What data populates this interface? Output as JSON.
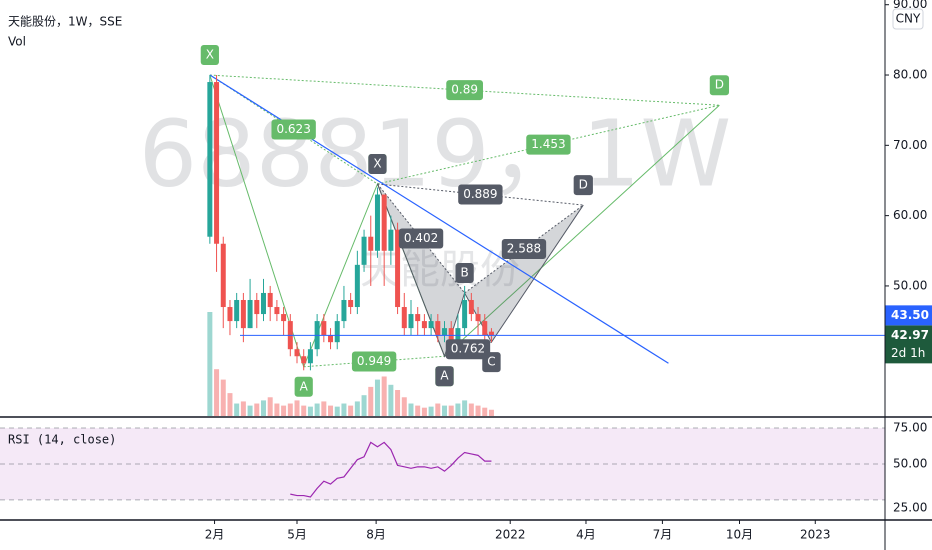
{
  "chart_data": {
    "type": "candlestick",
    "title": "天能股份，1W，SSE",
    "volume_label": "Vol",
    "watermark": "688819，1W",
    "watermark_sub": "天能股份",
    "currency": "CNY",
    "x": [
      0,
      1,
      2,
      3,
      4,
      5,
      6,
      7,
      8,
      9,
      10,
      11,
      12,
      13,
      14,
      15,
      16,
      17,
      18,
      19,
      20,
      21,
      22,
      23,
      24,
      25,
      26,
      27,
      28,
      29,
      30,
      31,
      32,
      33,
      34,
      35,
      36,
      37,
      38,
      39,
      40,
      41,
      42
    ],
    "open": [
      57,
      79,
      56,
      47,
      45,
      48,
      44,
      48,
      46,
      49,
      47,
      46,
      45,
      41,
      40,
      39,
      41,
      45,
      43,
      42,
      45,
      48,
      47,
      53,
      57,
      55,
      63,
      55,
      58,
      47,
      44,
      46,
      45,
      44,
      45,
      43,
      44,
      41,
      44,
      48,
      46,
      45,
      43.5
    ],
    "high": [
      80,
      80,
      57,
      48,
      49,
      49,
      51,
      49,
      51,
      50,
      48,
      47,
      46,
      42,
      41,
      42,
      46,
      46,
      44,
      46,
      50,
      49,
      55,
      58,
      60,
      64,
      63,
      60,
      59,
      49,
      48,
      47,
      46,
      46,
      46,
      45,
      45,
      46,
      50,
      49,
      47,
      46,
      44
    ],
    "low": [
      56,
      52,
      44,
      43,
      44,
      42,
      44,
      44,
      45,
      45,
      45,
      43,
      40,
      39,
      38,
      38,
      40,
      42,
      41,
      41,
      44,
      46,
      46,
      52,
      50,
      54,
      50,
      53,
      46,
      43,
      43,
      43,
      43,
      43,
      42,
      42,
      40,
      40,
      43,
      45,
      43,
      42,
      42
    ],
    "close": [
      79,
      56,
      47,
      45,
      48,
      44,
      48,
      46,
      49,
      47,
      46,
      45,
      41,
      40,
      39,
      41,
      45,
      43,
      42,
      45,
      48,
      47,
      53,
      57,
      55,
      63,
      55,
      58,
      47,
      44,
      46,
      45,
      44,
      45,
      43,
      44,
      41,
      44,
      48,
      46,
      45,
      43,
      42.97
    ],
    "volume": [
      100,
      45,
      35,
      22,
      12,
      14,
      10,
      12,
      15,
      18,
      12,
      10,
      12,
      15,
      10,
      9,
      12,
      14,
      10,
      9,
      12,
      10,
      14,
      20,
      28,
      35,
      38,
      30,
      25,
      18,
      12,
      10,
      8,
      9,
      12,
      10,
      10,
      12,
      15,
      12,
      10,
      8,
      6
    ],
    "volume_ylim": [
      0,
      100
    ],
    "up_color": "#26a69a",
    "down_color": "#ef5350",
    "xlim": [
      -31.3,
      100.7
    ],
    "xticks": [
      {
        "value": 0.7,
        "label": "2月"
      },
      {
        "value": 13,
        "label": "5月"
      },
      {
        "value": 24.8,
        "label": "8月"
      },
      {
        "value": 44.8,
        "label": "2022"
      },
      {
        "value": 56.1,
        "label": "4月"
      },
      {
        "value": 67.5,
        "label": "7月"
      },
      {
        "value": 79,
        "label": "10月"
      },
      {
        "value": 90.3,
        "label": "2023"
      }
    ],
    "ylim": [
      31.5,
      90.67
    ],
    "yticks": [
      {
        "value": 90,
        "label": "90.00"
      },
      {
        "value": 80,
        "label": "80.00"
      },
      {
        "value": 70,
        "label": "70.00"
      },
      {
        "value": 60,
        "label": "60.00"
      },
      {
        "value": 50,
        "label": "50.00"
      }
    ],
    "last_price": {
      "value": 42.97,
      "label": "42.97"
    },
    "countdown": "2d 1h",
    "marker_price": {
      "value": 43.5,
      "label": "43.50"
    },
    "trendline": {
      "x": [
        0,
        68.4
      ],
      "y": [
        80,
        39
      ],
      "color": "#2962ff"
    },
    "patterns": [
      {
        "color": "#66bb6a",
        "fill": false,
        "points": [
          {
            "label": "X",
            "x": 0,
            "y": 80
          },
          {
            "label": "A",
            "x": 14,
            "y": 38.5
          },
          {
            "label": "B",
            "x": 25,
            "y": 64.5
          },
          {
            "label": "C",
            "x": 35,
            "y": 40
          },
          {
            "label": "D",
            "x": 76,
            "y": 75.7
          }
        ],
        "ratios": [
          0.623,
          0.949,
          1.453,
          0.89
        ]
      },
      {
        "color": "#555a66",
        "fill": true,
        "points": [
          {
            "label": "X",
            "x": 25,
            "y": 64.5
          },
          {
            "label": "A",
            "x": 35,
            "y": 40
          },
          {
            "label": "B",
            "x": 38,
            "y": 49
          },
          {
            "label": "C",
            "x": 42,
            "y": 42
          },
          {
            "label": "D",
            "x": 55.7,
            "y": 61.5
          }
        ],
        "ratios": [
          0.402,
          0.762,
          2.588,
          0.889
        ]
      }
    ],
    "rsi": {
      "title": "RSI (14, close)",
      "color": "#9c27b0",
      "values": [
        null,
        null,
        null,
        null,
        null,
        null,
        null,
        null,
        null,
        null,
        null,
        null,
        29,
        28,
        28,
        27,
        33,
        38,
        36,
        40,
        41,
        47,
        53,
        55,
        65,
        62,
        65,
        60,
        49,
        48,
        47,
        48,
        48,
        47,
        48,
        45,
        49,
        54,
        58,
        57,
        56,
        52,
        52
      ],
      "ylim": [
        11,
        82
      ],
      "yticks": [
        {
          "value": 75,
          "label": "75.00"
        },
        {
          "value": 50,
          "label": "50.00"
        },
        {
          "value": 25,
          "label": "25.00"
        }
      ]
    }
  }
}
